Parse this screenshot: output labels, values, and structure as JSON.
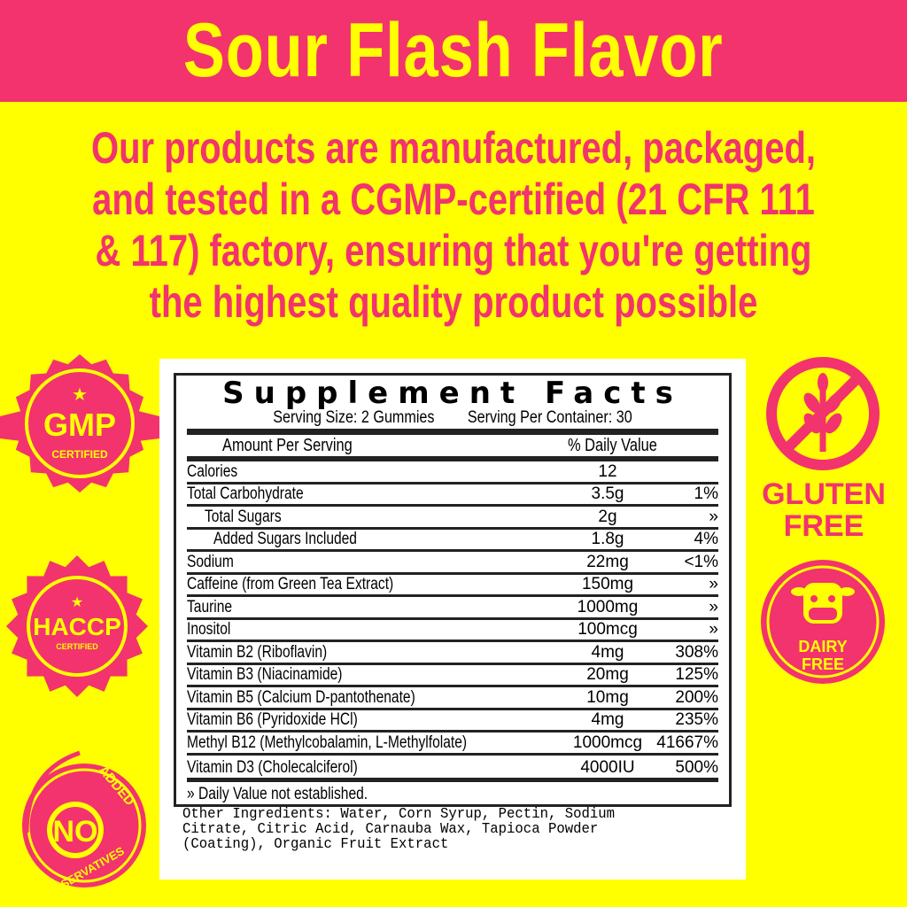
{
  "title": "Sour Flash Flavor",
  "headline": [
    "Our products are manufactured, packaged,",
    "and tested in a CGMP-certified (21 CFR 111",
    "& 117) factory, ensuring that you're getting",
    "the highest quality product possible"
  ],
  "colors": {
    "pink": "#f2336e",
    "yellow": "#ffff00"
  },
  "facts": {
    "title": "Supplement Facts",
    "serving_size": "Serving Size: 2 Gummies",
    "servings": "Serving Per Container: 30",
    "amount_header": "Amount Per Serving",
    "dv_header": "% Daily Value",
    "rows": [
      {
        "name": "Calories",
        "amount": "12",
        "dv": ""
      },
      {
        "name": "Total Carbohydrate",
        "amount": "3.5g",
        "dv": "1%"
      },
      {
        "name": "Total Sugars",
        "amount": "2g",
        "dv": "»"
      },
      {
        "name": "Added Sugars Included",
        "amount": "1.8g",
        "dv": "4%"
      },
      {
        "name": "Sodium",
        "amount": "22mg",
        "dv": "<1%"
      },
      {
        "name": "Caffeine (from Green Tea Extract)",
        "amount": "150mg",
        "dv": "»"
      },
      {
        "name": "Taurine",
        "amount": "1000mg",
        "dv": "»"
      },
      {
        "name": "Inositol",
        "amount": "100mcg",
        "dv": "»"
      },
      {
        "name": "Vitamin B2 (Riboflavin)",
        "amount": "4mg",
        "dv": "308%"
      },
      {
        "name": "Vitamin B3 (Niacinamide)",
        "amount": "20mg",
        "dv": "125%"
      },
      {
        "name": "Vitamin B5 (Calcium D-pantothenate)",
        "amount": "10mg",
        "dv": "200%"
      },
      {
        "name": "Vitamin B6 (Pyridoxide HCl)",
        "amount": "4mg",
        "dv": "235%"
      },
      {
        "name": "Methyl B12 (Methylcobalamin, L-Methylfolate)",
        "amount": "1000mcg",
        "dv": "41667%"
      },
      {
        "name": "Vitamin D3 (Cholecalciferol)",
        "amount": "4000IU",
        "dv": "500%"
      }
    ],
    "footnote": "» Daily Value not established.",
    "other_ingredients": "Other Ingredients: Water, Corn Syrup, Pectin, Sodium Citrate, Citric Acid, Carnauba Wax, Tapioca Powder (Coating), Organic Fruit Extract"
  },
  "badges": {
    "gmp": {
      "main": "GMP",
      "sub": "CERTIFIED"
    },
    "haccp": {
      "main": "HACCP",
      "sub": "CERTIFIED"
    },
    "preservatives": {
      "main": "NO",
      "top": "ADDED",
      "bottom": "PRESERVATIVES"
    },
    "gluten": {
      "line1": "GLUTEN",
      "line2": "FREE"
    },
    "dairy": {
      "line1": "DAIRY",
      "line2": "FREE"
    }
  }
}
